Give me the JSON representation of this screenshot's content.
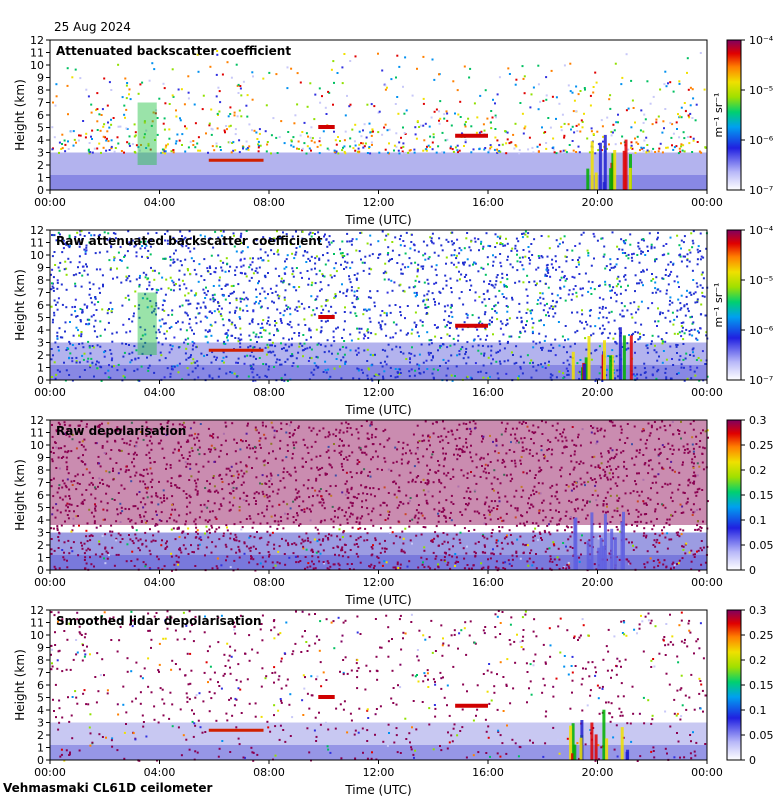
{
  "header": {
    "date": "25 Aug 2024"
  },
  "footer": {
    "site_label": "Vehmasmaki CL61D ceilometer"
  },
  "chart_data": [
    {
      "type": "heatmap",
      "title": "Attenuated backscatter coefficient",
      "xlabel": "Time (UTC)",
      "ylabel": "Height (km)",
      "xticks": [
        "00:00",
        "04:00",
        "08:00",
        "12:00",
        "16:00",
        "20:00",
        "00:00"
      ],
      "yticks": [
        0,
        1,
        2,
        3,
        4,
        5,
        6,
        7,
        8,
        9,
        10,
        11,
        12
      ],
      "ylim": [
        0,
        12
      ],
      "colorbar": {
        "scale": "log",
        "unit_label": "m⁻¹ sr⁻¹",
        "ticks": [
          "10⁻⁴",
          "10⁻⁵",
          "10⁻⁶",
          "10⁻⁷"
        ]
      }
    },
    {
      "type": "heatmap",
      "title": "Raw attenuated backscatter coefficient",
      "xlabel": "Time (UTC)",
      "ylabel": "Height (km)",
      "xticks": [
        "00:00",
        "04:00",
        "08:00",
        "12:00",
        "16:00",
        "20:00",
        "00:00"
      ],
      "yticks": [
        0,
        1,
        2,
        3,
        4,
        5,
        6,
        7,
        8,
        9,
        10,
        11,
        12
      ],
      "ylim": [
        0,
        12
      ],
      "colorbar": {
        "scale": "log",
        "unit_label": "m⁻¹ sr⁻¹",
        "ticks": [
          "10⁻⁴",
          "10⁻⁵",
          "10⁻⁶",
          "10⁻⁷"
        ]
      }
    },
    {
      "type": "heatmap",
      "title": "Raw depolarisation",
      "xlabel": "Time (UTC)",
      "ylabel": "Height (km)",
      "xticks": [
        "00:00",
        "04:00",
        "08:00",
        "12:00",
        "16:00",
        "20:00",
        "00:00"
      ],
      "yticks": [
        0,
        1,
        2,
        3,
        4,
        5,
        6,
        7,
        8,
        9,
        10,
        11,
        12
      ],
      "ylim": [
        0,
        12
      ],
      "colorbar": {
        "scale": "linear",
        "unit_label": "",
        "ticks": [
          "0.3",
          "0.25",
          "0.2",
          "0.15",
          "0.1",
          "0.05",
          "0"
        ]
      }
    },
    {
      "type": "heatmap",
      "title": "Smoothed lidar depolarisation",
      "xlabel": "Time (UTC)",
      "ylabel": "Height (km)",
      "xticks": [
        "00:00",
        "04:00",
        "08:00",
        "12:00",
        "16:00",
        "20:00",
        "00:00"
      ],
      "yticks": [
        0,
        1,
        2,
        3,
        4,
        5,
        6,
        7,
        8,
        9,
        10,
        11,
        12
      ],
      "ylim": [
        0,
        12
      ],
      "colorbar": {
        "scale": "linear",
        "unit_label": "",
        "ticks": [
          "0.3",
          "0.25",
          "0.2",
          "0.15",
          "0.1",
          "0.05",
          "0"
        ]
      }
    }
  ]
}
